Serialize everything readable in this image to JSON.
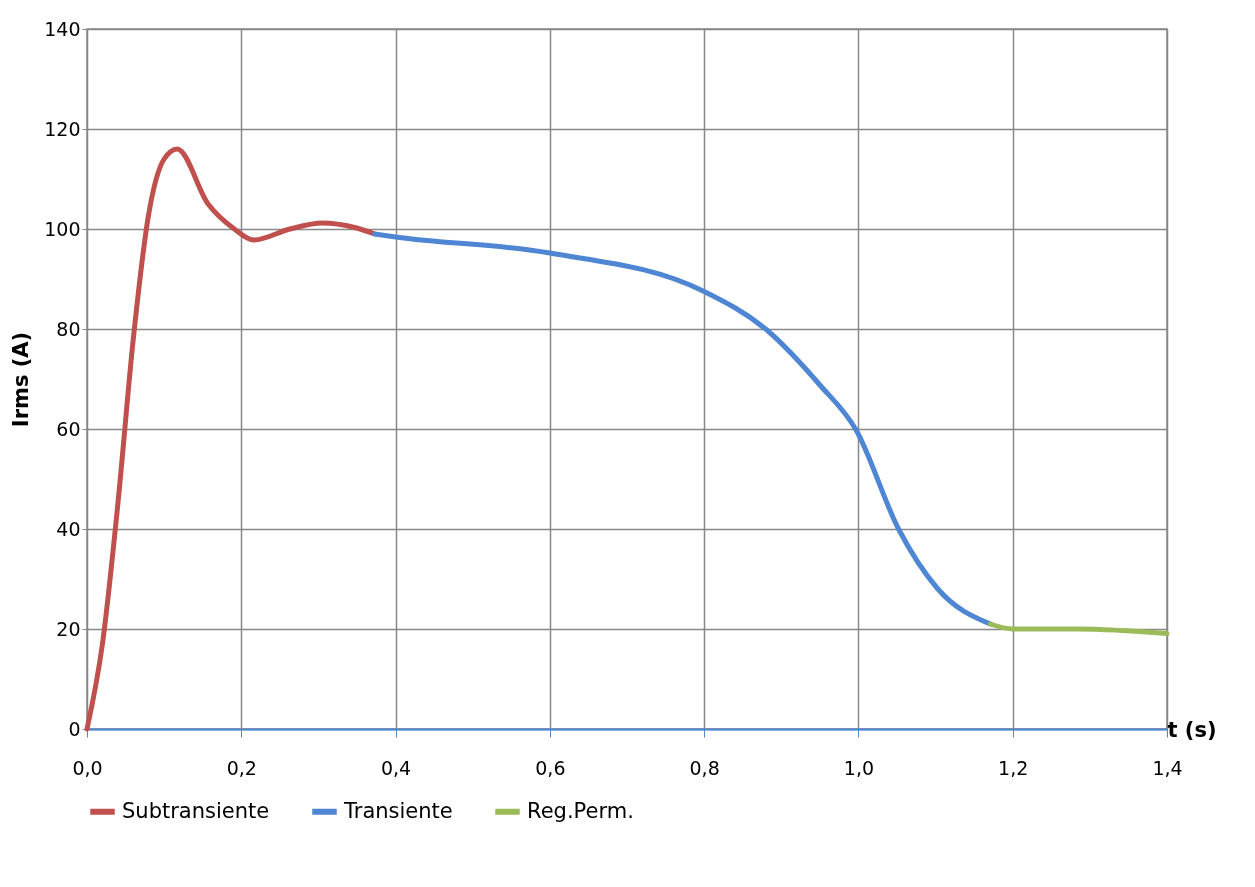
{
  "chart_data": {
    "type": "line",
    "xlabel": "t (s)",
    "ylabel": "Irms (A)",
    "series": [
      {
        "name": "Subtransiente",
        "color": "#c0504d",
        "x": [
          0,
          0.02,
          0.04,
          0.06,
          0.08,
          0.1,
          0.117,
          0.157,
          0.191,
          0.216,
          0.263,
          0.305,
          0.347,
          0.373
        ],
        "values": [
          0,
          17,
          45,
          78,
          103,
          114,
          116,
          105,
          100,
          97.8,
          100,
          101.2,
          100.3,
          99
        ]
      },
      {
        "name": "Transiente",
        "color": "#4f86d4",
        "x": [
          0.373,
          0.4,
          0.6,
          0.8,
          0.882,
          0.95,
          0.997,
          1.052,
          1.103,
          1.171
        ],
        "values": [
          99,
          98.4,
          95.2,
          87.5,
          79.7,
          68.8,
          59.8,
          40,
          28,
          21
        ]
      },
      {
        "name": "Reg.Perm.",
        "color": "#9bbb59",
        "x": [
          1.171,
          1.2,
          1.285,
          1.4
        ],
        "values": [
          21,
          20,
          20,
          19.1
        ]
      }
    ],
    "xlim": [
      0,
      1.4
    ],
    "xticks": [
      {
        "value": 0,
        "label": "0,0"
      },
      {
        "value": 0.2,
        "label": "0,2"
      },
      {
        "value": 0.4,
        "label": "0,4"
      },
      {
        "value": 0.6,
        "label": "0,6"
      },
      {
        "value": 0.8,
        "label": "0,8"
      },
      {
        "value": 1.0,
        "label": "1,0"
      },
      {
        "value": 1.2,
        "label": "1,2"
      },
      {
        "value": 1.4,
        "label": "1,4"
      }
    ],
    "ylim": [
      0,
      140
    ],
    "yticks": [
      0,
      20,
      40,
      60,
      80,
      100,
      120,
      140
    ],
    "grid": true,
    "legend": "bottom",
    "marker": "none",
    "line_style": "solid"
  }
}
